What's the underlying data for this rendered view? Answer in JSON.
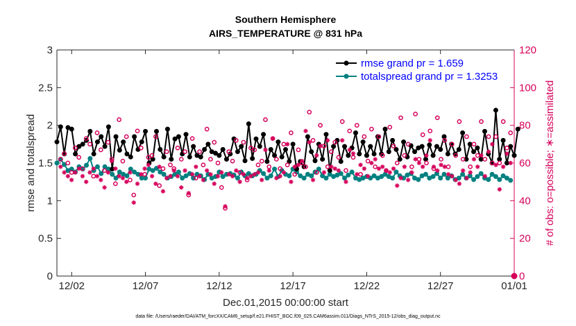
{
  "chart_data": {
    "type": "line",
    "title": "Southern Hemisphere",
    "subtitle": "AIRS_TEMPERATURE @ 831 hPa",
    "xlabel": "Dec.01,2015 00:00:00 start",
    "ylabel": "rmse and totalspread",
    "y2label": "# of obs: o=possible; ∗=assimilated",
    "footnote": "data file: /Users/raeder/DAI/ATM_forcXX/CAM6_setup/f.e21.FHIST_BGC.f09_025.CAM6assim.011/Diags_NTrS_2015-12/obs_diag_output.nc",
    "x_range": [
      0,
      124
    ],
    "x_ticks": [
      {
        "label": "12/02",
        "x": 4
      },
      {
        "label": "12/07",
        "x": 24
      },
      {
        "label": "12/12",
        "x": 44
      },
      {
        "label": "12/17",
        "x": 64
      },
      {
        "label": "12/22",
        "x": 84
      },
      {
        "label": "12/27",
        "x": 104
      },
      {
        "label": "01/01",
        "x": 124
      }
    ],
    "ylim": [
      0,
      3
    ],
    "y_ticks": [
      "0",
      "0.5",
      "1",
      "1.5",
      "2",
      "2.5",
      "3"
    ],
    "y2lim": [
      0,
      120
    ],
    "y2_ticks": [
      "0",
      "20",
      "40",
      "60",
      "80",
      "100",
      "120"
    ],
    "colors": {
      "rmse": "#000000",
      "spread": "#008080",
      "obs": "#d6005b",
      "legend_text": "#0000ff"
    },
    "legend": {
      "placement": "top-right",
      "entries": [
        {
          "label": "rmse grand pr = 1.659",
          "series": "rmse"
        },
        {
          "label": "totalspread grand pr = 1.3253",
          "series": "spread"
        }
      ]
    },
    "series": [
      {
        "name": "rmse",
        "axis": "left",
        "values": [
          1.78,
          1.98,
          1.62,
          1.97,
          1.95,
          1.62,
          1.72,
          1.75,
          1.8,
          1.92,
          1.62,
          1.78,
          1.85,
          1.72,
          1.98,
          1.42,
          1.85,
          1.67,
          1.78,
          1.62,
          1.58,
          1.85,
          1.68,
          1.78,
          1.92,
          1.5,
          1.55,
          1.92,
          1.68,
          1.58,
          1.95,
          1.55,
          1.82,
          1.85,
          1.62,
          1.88,
          1.58,
          1.72,
          1.6,
          1.58,
          1.68,
          1.75,
          1.65,
          1.63,
          1.6,
          1.68,
          1.55,
          1.62,
          1.82,
          1.65,
          1.72,
          1.53,
          2.02,
          1.56,
          1.82,
          1.72,
          1.88,
          1.52,
          1.68,
          1.6,
          1.78,
          1.58,
          1.68,
          1.52,
          1.75,
          1.42,
          1.52,
          1.45,
          1.85,
          1.65,
          1.53,
          1.75,
          1.55,
          1.88,
          1.4,
          1.72,
          1.8,
          1.52,
          1.72,
          1.6,
          1.7,
          1.9,
          1.62,
          1.78,
          1.6,
          1.72,
          1.62,
          1.85,
          1.62,
          1.95,
          1.65,
          1.8,
          1.68,
          1.55,
          1.78,
          1.58,
          1.73,
          1.65,
          1.7,
          1.72,
          1.55,
          1.74,
          1.6,
          1.72,
          1.68,
          1.85,
          1.62,
          1.75,
          1.62,
          1.68,
          1.9,
          1.55,
          1.75,
          1.65,
          1.7,
          1.55,
          1.92,
          1.62,
          1.5,
          2.2,
          1.55,
          1.8,
          1.5,
          1.72,
          1.6,
          1.95
        ]
      },
      {
        "name": "totalspread",
        "axis": "left",
        "values": [
          1.5,
          1.55,
          1.48,
          1.4,
          1.42,
          1.38,
          1.45,
          1.42,
          1.47,
          1.56,
          1.4,
          1.45,
          1.36,
          1.45,
          1.42,
          1.35,
          1.3,
          1.38,
          1.35,
          1.33,
          1.42,
          1.38,
          1.35,
          1.3,
          1.3,
          1.42,
          1.4,
          1.43,
          1.38,
          1.35,
          1.3,
          1.32,
          1.35,
          1.38,
          1.3,
          1.33,
          1.36,
          1.3,
          1.35,
          1.33,
          1.28,
          1.35,
          1.3,
          1.32,
          1.38,
          1.32,
          1.35,
          1.36,
          1.34,
          1.3,
          1.38,
          1.33,
          1.36,
          1.33,
          1.35,
          1.4,
          1.36,
          1.3,
          1.33,
          1.42,
          1.32,
          1.4,
          1.35,
          1.33,
          1.42,
          1.38,
          1.33,
          1.3,
          1.35,
          1.33,
          1.38,
          1.42,
          1.33,
          1.3,
          1.35,
          1.32,
          1.34,
          1.36,
          1.3,
          1.34,
          1.38,
          1.3,
          1.28,
          1.3,
          1.32,
          1.3,
          1.33,
          1.3,
          1.32,
          1.35,
          1.32,
          1.3,
          1.38,
          1.33,
          1.3,
          1.34,
          1.36,
          1.3,
          1.28,
          1.33,
          1.35,
          1.3,
          1.32,
          1.36,
          1.3,
          1.35,
          1.3,
          1.33,
          1.28,
          1.3,
          1.35,
          1.3,
          1.33,
          1.28,
          1.32,
          1.36,
          1.3,
          1.28,
          1.35,
          1.32,
          1.28,
          1.33,
          1.3,
          1.27
        ]
      },
      {
        "name": "obs possible",
        "axis": "right",
        "values": [
          62,
          65,
          60,
          55,
          68,
          63,
          57,
          73,
          70,
          53,
          76,
          67,
          56,
          71,
          62,
          49,
          83,
          61,
          74,
          51,
          43,
          77,
          68,
          54,
          63,
          64,
          74,
          48,
          57,
          66,
          59,
          57,
          68,
          62,
          66,
          43,
          73,
          52,
          66,
          59,
          78,
          62,
          71,
          60,
          47,
          36,
          66,
          61,
          72,
          55,
          71,
          51,
          68,
          67,
          59,
          61,
          83,
          58,
          73,
          62,
          57,
          70,
          59,
          76,
          54,
          67,
          60,
          58,
          87,
          72,
          55,
          80,
          69,
          58,
          66,
          71,
          63,
          82,
          56,
          77,
          63,
          80,
          54,
          74,
          61,
          78,
          58,
          74,
          64,
          56,
          79,
          69,
          60,
          84,
          64,
          70,
          58,
          86,
          62,
          75,
          60,
          77,
          57,
          84,
          62,
          72,
          58,
          70,
          64,
          82,
          62,
          74,
          58,
          70,
          64,
          82,
          62,
          74,
          60,
          74,
          60,
          82,
          68,
          76
        ]
      },
      {
        "name": "obs assimilated",
        "axis": "right",
        "values": [
          58,
          55,
          53,
          51,
          55,
          57,
          53,
          50,
          55,
          57,
          53,
          51,
          47,
          55,
          61,
          57,
          53,
          52,
          50,
          55,
          39,
          49,
          54,
          57,
          59,
          53,
          49,
          58,
          45,
          52,
          53,
          56,
          53,
          47,
          56,
          44,
          54,
          58,
          53,
          51,
          56,
          54,
          49,
          53,
          55,
          37,
          54,
          53,
          56,
          50,
          54,
          52,
          53,
          54,
          55,
          51,
          67,
          56,
          73,
          52,
          53,
          55,
          70,
          50,
          58,
          59,
          61,
          77,
          71,
          51,
          64,
          69,
          55,
          72,
          58,
          57,
          56,
          72,
          50,
          67,
          65,
          54,
          59,
          57,
          53,
          60,
          62,
          57,
          58,
          56,
          55,
          57,
          48,
          52,
          58,
          51,
          55,
          62,
          60,
          58,
          64,
          72,
          58,
          56,
          59,
          58,
          54,
          53,
          51,
          49,
          56,
          52,
          55,
          62,
          58,
          64,
          53,
          66,
          70,
          59,
          46,
          58,
          65,
          60
        ]
      }
    ]
  }
}
